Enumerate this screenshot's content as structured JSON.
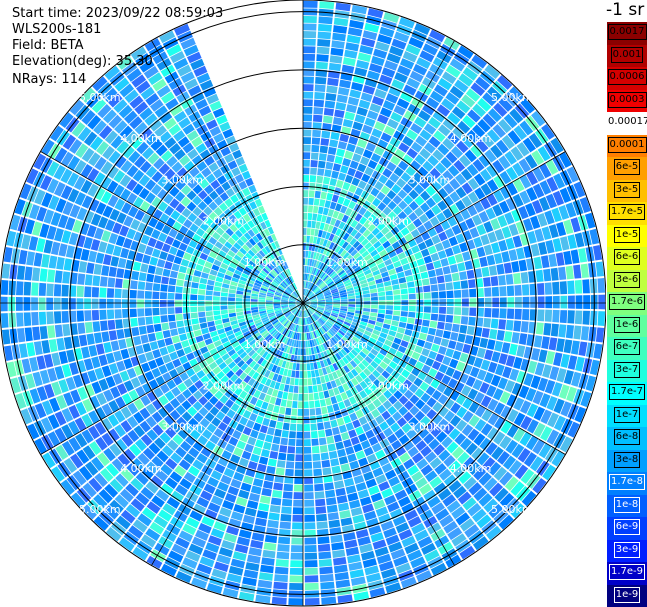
{
  "header": {
    "start_time": "Start time: 2023/09/22 08:59:03",
    "instrument": "WLS200s-181",
    "field": "Field: BETA",
    "elevation": "Elevation(deg): 35.30",
    "nrays": "NRays: 114"
  },
  "scale_title": "-1 sr",
  "chart_data": {
    "type": "heatmap",
    "projection": "polar-ppi",
    "field": "BETA",
    "elevation_deg": 35.3,
    "n_rays": 114,
    "range_rings_km": [
      1.0,
      2.0,
      3.0,
      4.0,
      5.0
    ],
    "ring_labels": [
      "1.00km",
      "2.00km",
      "3.00km",
      "4.00km",
      "5.00km"
    ],
    "max_range_km": 5.2,
    "missing_sector_deg": [
      337,
      360
    ],
    "colorbar": {
      "ticks": [
        "0.0017",
        "0.001",
        "0.0006",
        "0.0003",
        "0.00017",
        "0.0001",
        "6e-5",
        "3e-5",
        "1.7e-5",
        "1e-5",
        "6e-6",
        "3e-6",
        "1.7e-6",
        "1e-6",
        "6e-7",
        "3e-7",
        "1.7e-7",
        "1e-7",
        "6e-8",
        "3e-8",
        "1.7e-8",
        "1e-8",
        "6e-9",
        "3e-9",
        "1.7e-9",
        "1e-9"
      ],
      "colors": [
        "#8b0000",
        "#b00000",
        "#d40000",
        "#f00000",
        "#ffffff",
        "#ff7f00",
        "#ff9f00",
        "#ffbf00",
        "#ffdf00",
        "#ffff00",
        "#dfff1f",
        "#bfff3f",
        "#7fff7f",
        "#5fff9f",
        "#3fffbf",
        "#1fffdf",
        "#00ffff",
        "#00dfff",
        "#00bfff",
        "#009fff",
        "#007fff",
        "#005fff",
        "#003fff",
        "#001fff",
        "#0000c8",
        "#000080"
      ],
      "text_colors": [
        "#000",
        "#000",
        "#000",
        "#000",
        "#000",
        "#000",
        "#000",
        "#000",
        "#000",
        "#000",
        "#000",
        "#000",
        "#000",
        "#000",
        "#000",
        "#000",
        "#000",
        "#000",
        "#000",
        "#000",
        "#fff",
        "#fff",
        "#fff",
        "#fff",
        "#fff",
        "#fff"
      ]
    }
  }
}
